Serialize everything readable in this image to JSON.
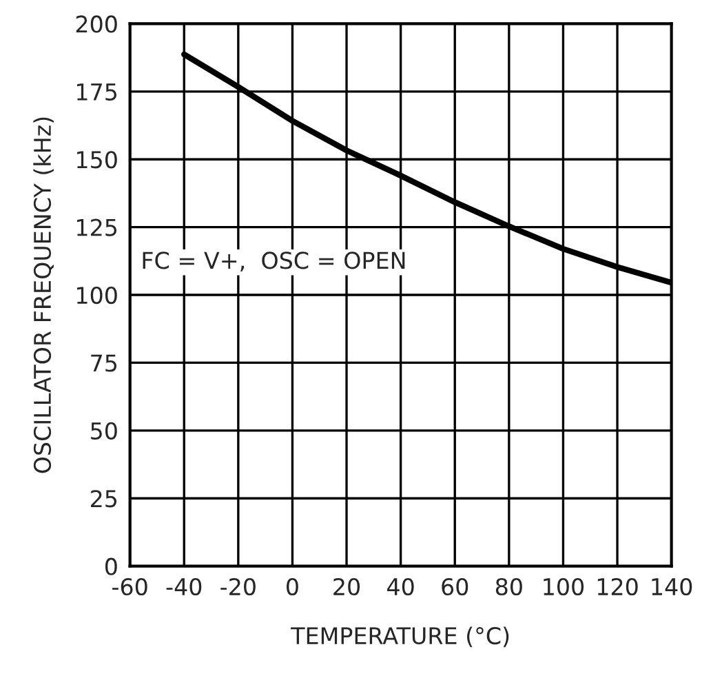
{
  "chart_data": {
    "type": "line",
    "xlabel": "TEMPERATURE (°C)",
    "ylabel": "OSCILLATOR FREQUENCY (kHz)",
    "x": [
      -40,
      -20,
      0,
      20,
      40,
      60,
      80,
      100,
      120,
      140
    ],
    "series": [
      {
        "color": "#000000",
        "values": [
          188.7,
          176.7,
          164.2,
          153.3,
          144,
          134.2,
          125.3,
          117,
          110.3,
          104.5
        ]
      }
    ],
    "xlim": [
      -60,
      140
    ],
    "ylim": [
      0,
      200
    ],
    "xticks": [
      -60,
      -40,
      -20,
      0,
      20,
      40,
      60,
      80,
      100,
      120,
      140
    ],
    "yticks": [
      0,
      25,
      50,
      75,
      100,
      125,
      150,
      175,
      200
    ],
    "grid": true,
    "marker": "none",
    "line_style": "solid",
    "annotations": [
      "FC = V+,  OSC = OPEN"
    ]
  }
}
